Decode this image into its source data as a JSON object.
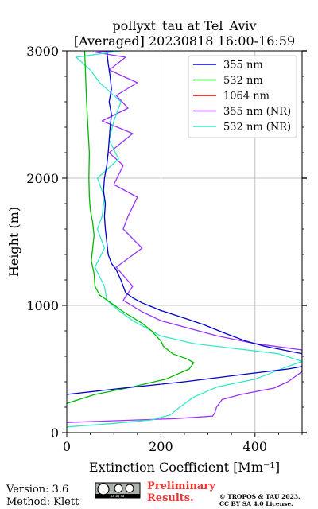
{
  "chart_data": {
    "type": "line",
    "title": "pollyxt_tau at Tel_Aviv",
    "subtitle": "[Averaged] 20230818 16:00-16:59",
    "xlabel": "Extinction Coefficient [Mm⁻¹]",
    "ylabel": "Height (m)",
    "xlim": [
      0,
      500
    ],
    "ylim": [
      0,
      3000
    ],
    "x_ticks": [
      0,
      200,
      400
    ],
    "y_ticks": [
      0,
      1000,
      2000,
      3000
    ],
    "grid": true,
    "legend_position": "top-right",
    "series": [
      {
        "name": "355 nm",
        "color": "#0000cc",
        "points": [
          [
            0,
            300
          ],
          [
            120,
            350
          ],
          [
            250,
            400
          ],
          [
            380,
            460
          ],
          [
            470,
            500
          ],
          [
            500,
            520
          ],
          [
            520,
            540
          ],
          [
            500,
            620
          ],
          [
            460,
            650
          ],
          [
            420,
            680
          ],
          [
            380,
            720
          ],
          [
            330,
            790
          ],
          [
            290,
            850
          ],
          [
            250,
            900
          ],
          [
            200,
            960
          ],
          [
            160,
            1020
          ],
          [
            140,
            1060
          ],
          [
            125,
            1100
          ],
          [
            120,
            1150
          ],
          [
            115,
            1200
          ],
          [
            105,
            1280
          ],
          [
            95,
            1330
          ],
          [
            88,
            1400
          ],
          [
            85,
            1500
          ],
          [
            82,
            1600
          ],
          [
            80,
            1700
          ],
          [
            82,
            1800
          ],
          [
            78,
            1900
          ],
          [
            80,
            2000
          ],
          [
            85,
            2100
          ],
          [
            88,
            2200
          ],
          [
            90,
            2300
          ],
          [
            92,
            2400
          ],
          [
            95,
            2500
          ],
          [
            90,
            2600
          ],
          [
            95,
            2700
          ],
          [
            92,
            2800
          ],
          [
            88,
            2900
          ],
          [
            85,
            3000
          ]
        ]
      },
      {
        "name": "532 nm",
        "color": "#00b800",
        "points": [
          [
            0,
            230
          ],
          [
            60,
            300
          ],
          [
            140,
            360
          ],
          [
            210,
            420
          ],
          [
            260,
            500
          ],
          [
            270,
            550
          ],
          [
            255,
            580
          ],
          [
            225,
            620
          ],
          [
            205,
            680
          ],
          [
            200,
            720
          ],
          [
            180,
            800
          ],
          [
            160,
            860
          ],
          [
            120,
            950
          ],
          [
            90,
            1030
          ],
          [
            70,
            1080
          ],
          [
            60,
            1150
          ],
          [
            58,
            1250
          ],
          [
            52,
            1350
          ],
          [
            55,
            1450
          ],
          [
            58,
            1550
          ],
          [
            55,
            1650
          ],
          [
            50,
            1750
          ],
          [
            48,
            1850
          ],
          [
            47,
            2000
          ],
          [
            48,
            2200
          ],
          [
            45,
            2400
          ],
          [
            42,
            2600
          ],
          [
            40,
            2800
          ],
          [
            38,
            3000
          ]
        ]
      },
      {
        "name": "1064 nm",
        "color": "#dd0000",
        "points": []
      },
      {
        "name": "355 nm (NR)",
        "color": "#9933ff",
        "points": [
          [
            0,
            80
          ],
          [
            150,
            100
          ],
          [
            230,
            110
          ],
          [
            310,
            130
          ],
          [
            315,
            160
          ],
          [
            318,
            200
          ],
          [
            330,
            260
          ],
          [
            370,
            300
          ],
          [
            440,
            350
          ],
          [
            470,
            400
          ],
          [
            500,
            480
          ],
          [
            500,
            650
          ],
          [
            440,
            680
          ],
          [
            400,
            700
          ],
          [
            320,
            760
          ],
          [
            250,
            830
          ],
          [
            200,
            880
          ],
          [
            160,
            950
          ],
          [
            120,
            1040
          ],
          [
            140,
            1150
          ],
          [
            105,
            1300
          ],
          [
            160,
            1450
          ],
          [
            120,
            1600
          ],
          [
            130,
            1700
          ],
          [
            150,
            1850
          ],
          [
            100,
            1950
          ],
          [
            120,
            2100
          ],
          [
            90,
            2200
          ],
          [
            140,
            2350
          ],
          [
            75,
            2450
          ],
          [
            130,
            2550
          ],
          [
            105,
            2650
          ],
          [
            150,
            2750
          ],
          [
            90,
            2850
          ],
          [
            125,
            2950
          ],
          [
            60,
            2990
          ],
          [
            115,
            3000
          ]
        ]
      },
      {
        "name": "532 nm (NR)",
        "color": "#33e8cc",
        "points": [
          [
            0,
            45
          ],
          [
            90,
            70
          ],
          [
            180,
            100
          ],
          [
            220,
            140
          ],
          [
            240,
            200
          ],
          [
            270,
            280
          ],
          [
            320,
            360
          ],
          [
            400,
            420
          ],
          [
            470,
            520
          ],
          [
            500,
            560
          ],
          [
            450,
            620
          ],
          [
            360,
            660
          ],
          [
            270,
            700
          ],
          [
            200,
            760
          ],
          [
            140,
            880
          ],
          [
            110,
            960
          ],
          [
            85,
            1040
          ],
          [
            80,
            1150
          ],
          [
            60,
            1300
          ],
          [
            80,
            1450
          ],
          [
            65,
            1600
          ],
          [
            75,
            1700
          ],
          [
            80,
            1850
          ],
          [
            65,
            2000
          ],
          [
            110,
            2150
          ],
          [
            90,
            2300
          ],
          [
            100,
            2450
          ],
          [
            115,
            2600
          ],
          [
            70,
            2750
          ],
          [
            50,
            2850
          ],
          [
            20,
            2950
          ],
          [
            115,
            3000
          ]
        ]
      }
    ]
  },
  "footer": {
    "version": "Version: 3.6",
    "method": "Method: Klett",
    "preliminary_line1": "Preliminary",
    "preliminary_line2": "Results.",
    "copyright_line1": "© TROPOS & TAU 2023.",
    "copyright_line2": "CC BY SA 4.0 License.",
    "license_badge": "cc by sa"
  }
}
